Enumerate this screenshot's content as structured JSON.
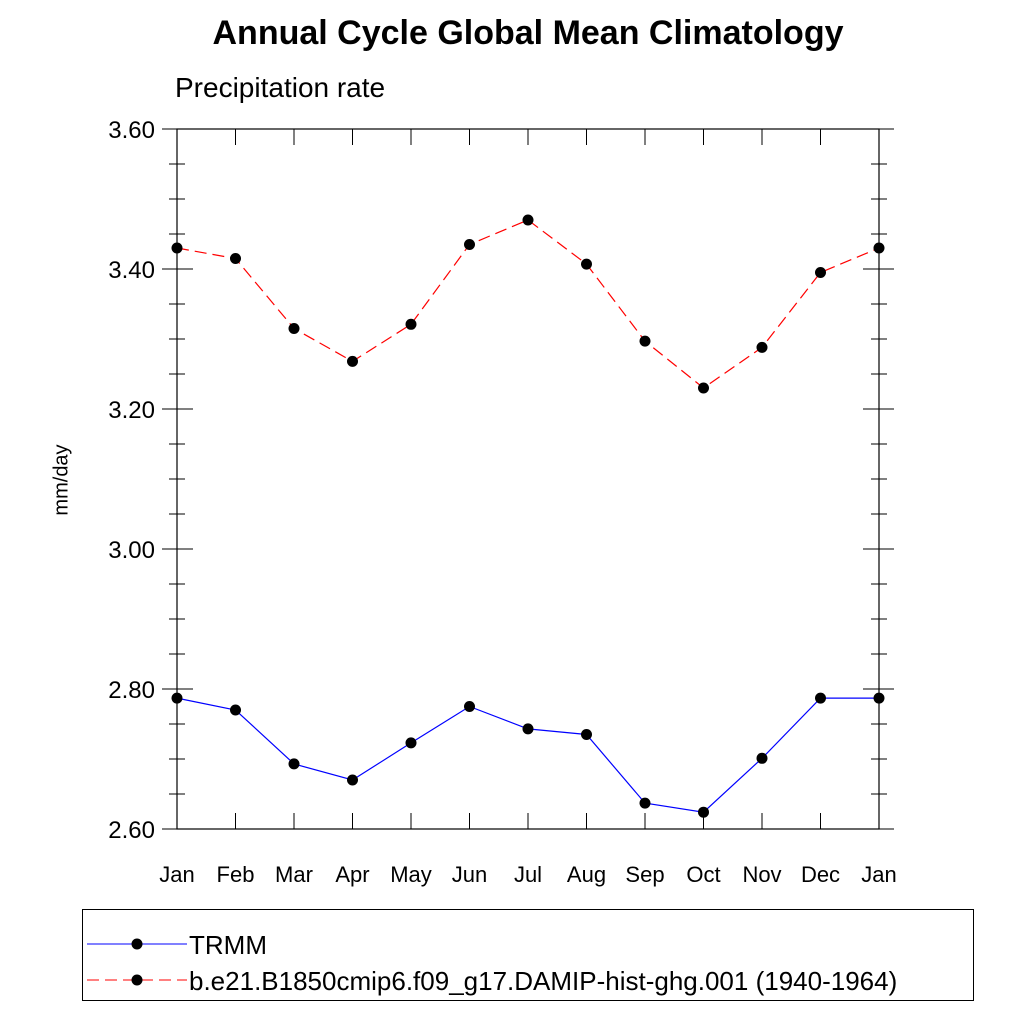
{
  "chart_data": {
    "type": "line",
    "title": "Annual Cycle Global Mean Climatology",
    "subtitle": "Precipitation rate",
    "ylabel": "mm/day",
    "xlabel": "",
    "categories": [
      "Jan",
      "Feb",
      "Mar",
      "Apr",
      "May",
      "Jun",
      "Jul",
      "Aug",
      "Sep",
      "Oct",
      "Nov",
      "Dec",
      "Jan"
    ],
    "ylim": [
      2.6,
      3.6
    ],
    "yticks": [
      2.6,
      2.8,
      3.0,
      3.2,
      3.4,
      3.6
    ],
    "ytick_labels": [
      "2.60",
      "2.80",
      "3.00",
      "3.20",
      "3.40",
      "3.60"
    ],
    "grid": false,
    "legend_position": "bottom",
    "series": [
      {
        "name": "TRMM",
        "color": "#0000ff",
        "dash": "solid",
        "marker": "filled-circle",
        "values": [
          2.787,
          2.77,
          2.693,
          2.67,
          2.723,
          2.775,
          2.743,
          2.735,
          2.637,
          2.624,
          2.701,
          2.787,
          2.787
        ]
      },
      {
        "name": "b.e21.B1850cmip6.f09_g17.DAMIP-hist-ghg.001 (1940-1964)",
        "color": "#ff0000",
        "dash": "dashed",
        "marker": "filled-circle",
        "values": [
          3.43,
          3.415,
          3.315,
          3.268,
          3.321,
          3.435,
          3.47,
          3.407,
          3.297,
          3.23,
          3.288,
          3.395,
          3.43
        ]
      }
    ]
  }
}
